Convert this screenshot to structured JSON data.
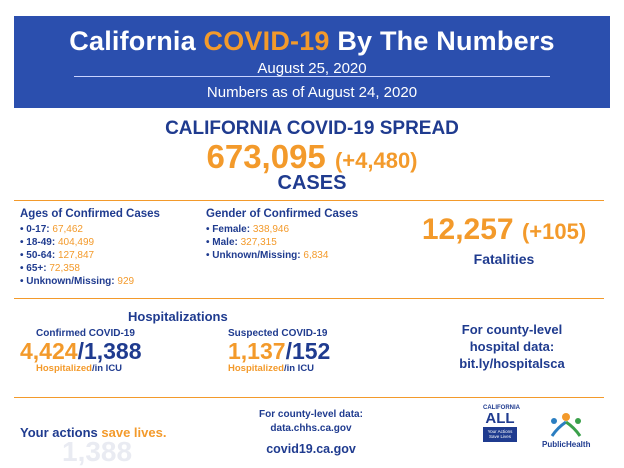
{
  "header": {
    "title_pre": "California ",
    "title_highlight": "COVID-19",
    "title_post": " By The Numbers",
    "date": "August 25, 2020",
    "as_of": "Numbers as of August 24, 2020"
  },
  "spread": {
    "heading": "CALIFORNIA COVID-19 SPREAD",
    "cases": "673,095",
    "cases_delta": "(+4,480)",
    "label": "CASES"
  },
  "age": {
    "heading": "Ages of Confirmed Cases",
    "items": [
      {
        "label": "0-17: ",
        "value": "67,462"
      },
      {
        "label": "18-49: ",
        "value": "404,499"
      },
      {
        "label": "50-64: ",
        "value": "127,847"
      },
      {
        "label": "65+: ",
        "value": "72,358"
      },
      {
        "label": "Unknown/Missing: ",
        "value": "929"
      }
    ]
  },
  "gender": {
    "heading": "Gender of Confirmed Cases",
    "items": [
      {
        "label": "Female: ",
        "value": "338,946"
      },
      {
        "label": "Male: ",
        "value": "327,315"
      },
      {
        "label": "Unknown/Missing: ",
        "value": "6,834"
      }
    ]
  },
  "fatalities": {
    "value": "12,257",
    "delta": "(+105)",
    "label": "Fatalities"
  },
  "hospitalizations": {
    "heading": "Hospitalizations",
    "confirmed": {
      "title": "Confirmed COVID-19",
      "hospitalized": "4,424",
      "icu": "1,388",
      "hosp_label": "Hospitalized",
      "icu_label": "/in ICU"
    },
    "suspected": {
      "title": "Suspected COVID-19",
      "hospitalized": "1,137",
      "icu": "152",
      "hosp_label": "Hospitalized",
      "icu_label": "/in ICU"
    }
  },
  "county_hospital": {
    "line1": "For county-level",
    "line2": "hospital data:",
    "link": "bit.ly/hospitalsca"
  },
  "footer": {
    "actions_pre": "Your actions ",
    "actions_highlight": "save lives.",
    "data_line1": "For county-level data:",
    "data_link": "data.chhs.ca.gov",
    "site": "covid19.ca.gov",
    "ca_logo_top": "CALIFORNIA",
    "ca_logo_all": "ALL",
    "ca_logo_box": "Your Actions Save Lives",
    "ph_logo": "PublicHealth",
    "ghost": "1,388"
  },
  "colors": {
    "accent": "#f39a2b",
    "primary": "#1f3b8f",
    "banner": "#2b4fae"
  }
}
